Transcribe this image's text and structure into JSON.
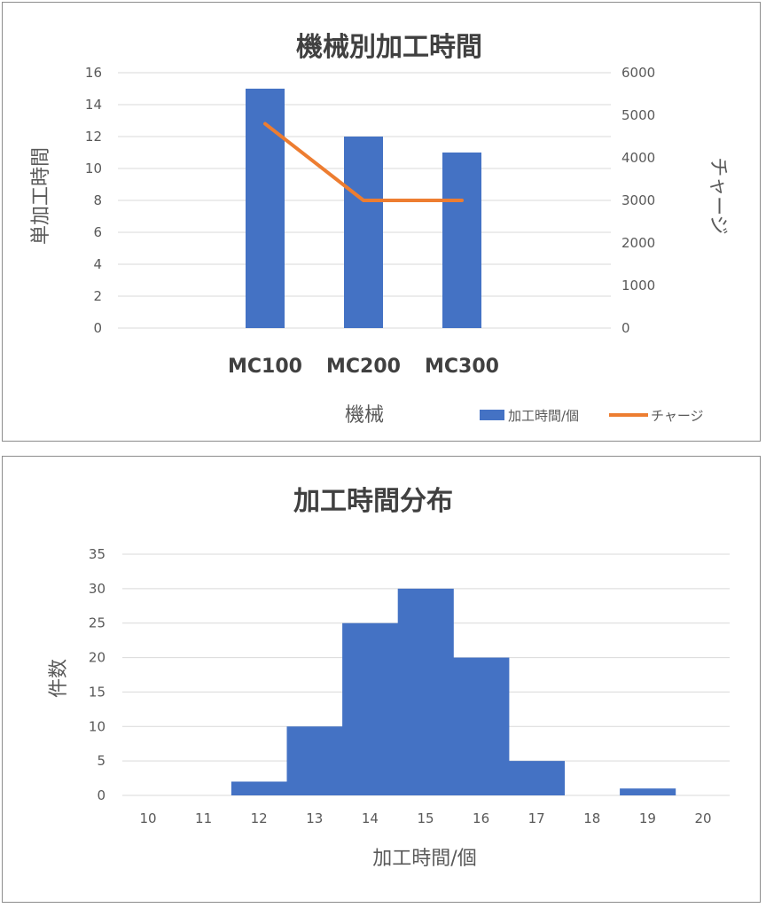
{
  "chart_data": [
    {
      "type": "bar",
      "title": "機械別加工時間",
      "categories": [
        "MC100",
        "MC200",
        "MC300"
      ],
      "xlabel": "機械",
      "ylabel": "単加工時間",
      "y2label": "チャージ",
      "ylim": [
        0,
        16
      ],
      "yticks": [
        0,
        2,
        4,
        6,
        8,
        10,
        12,
        14,
        16
      ],
      "y2lim": [
        0,
        6000
      ],
      "y2ticks": [
        0,
        1000,
        2000,
        3000,
        4000,
        5000,
        6000
      ],
      "grid": true,
      "legend_position": "bottom-right",
      "series": [
        {
          "name": "加工時間/個",
          "type": "bar",
          "axis": "left",
          "color": "#4472C4",
          "values": [
            15,
            12,
            11
          ]
        },
        {
          "name": "チャージ",
          "type": "line",
          "axis": "right",
          "color": "#ED7D31",
          "values": [
            4800,
            3000,
            3000
          ]
        }
      ]
    },
    {
      "type": "bar",
      "title": "加工時間分布",
      "categories": [
        "10",
        "11",
        "12",
        "13",
        "14",
        "15",
        "16",
        "17",
        "18",
        "19",
        "20"
      ],
      "values": [
        0,
        0,
        2,
        10,
        25,
        30,
        20,
        5,
        0,
        1,
        0
      ],
      "xlabel": "加工時間/個",
      "ylabel": "件数",
      "ylim": [
        0,
        35
      ],
      "yticks": [
        0,
        5,
        10,
        15,
        20,
        25,
        30,
        35
      ],
      "grid": true,
      "color": "#4472C4"
    }
  ]
}
